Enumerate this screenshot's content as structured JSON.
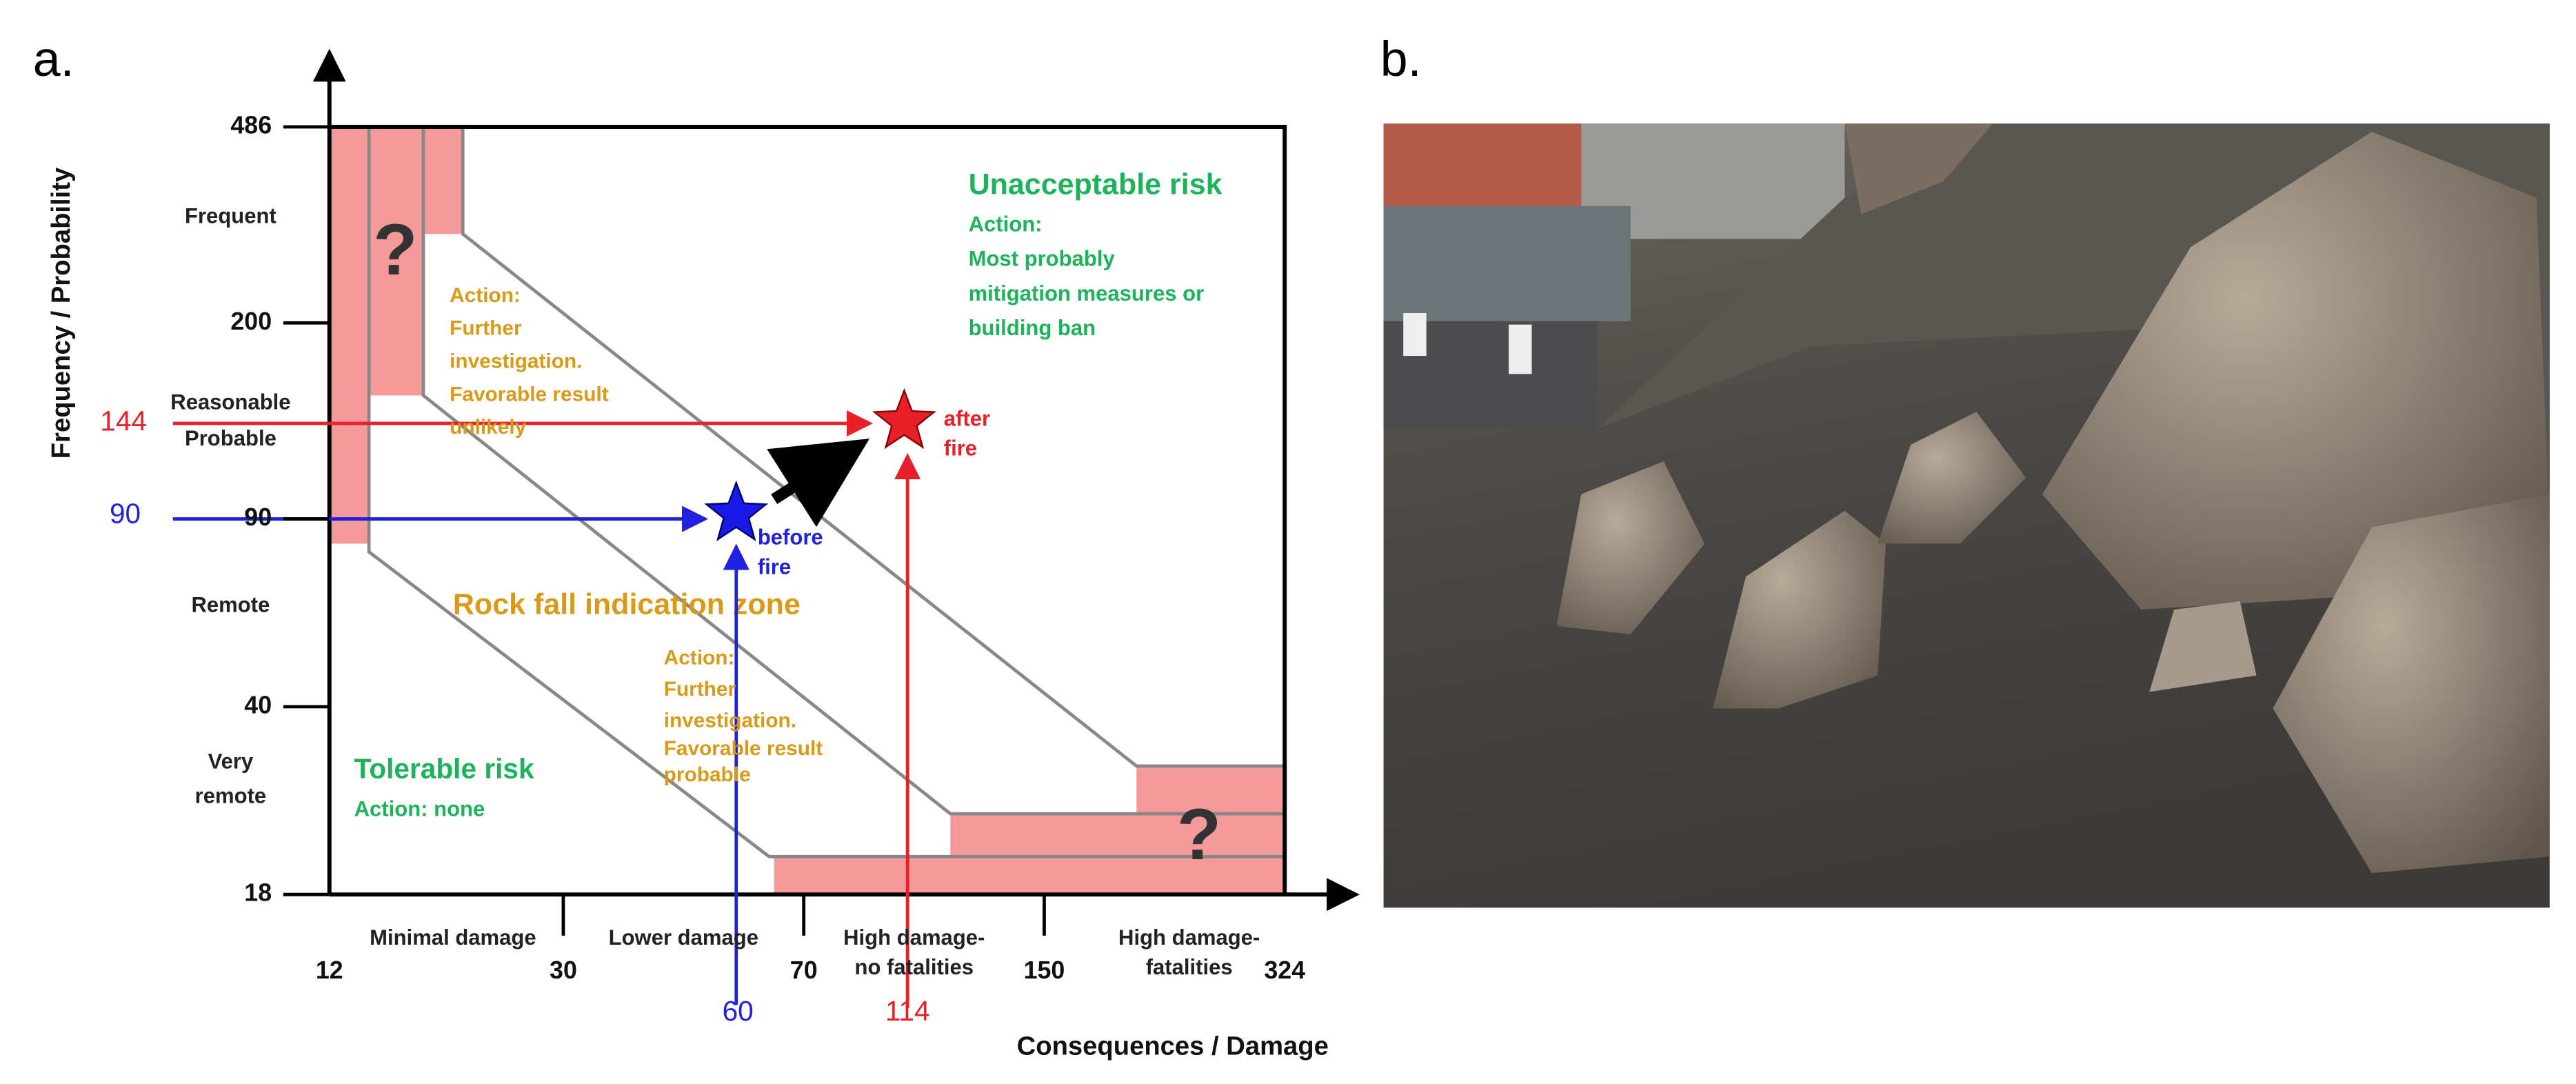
{
  "panel_a": {
    "label": "a.",
    "y_axis_title": "Frequency / Probability",
    "x_axis_title": "Consequences / Damage",
    "y_ticks": [
      486,
      200,
      90,
      40,
      18
    ],
    "y_categories": [
      [
        "Frequent"
      ],
      [
        "Reasonable",
        "Probable"
      ],
      [
        "Remote"
      ],
      [
        "Very",
        "remote"
      ]
    ],
    "x_ticks": [
      12,
      30,
      70,
      150,
      324
    ],
    "x_categories": [
      [
        "Minimal damage"
      ],
      [
        "Lower damage"
      ],
      [
        "High damage-",
        "no fatalities"
      ],
      [
        "High damage-",
        "fatalities"
      ]
    ],
    "unacceptable": {
      "title": "Unacceptable risk",
      "lines": [
        "Action:",
        "Most probably",
        "mitigation measures or",
        "building ban"
      ]
    },
    "upper_action": [
      "Action:",
      "Further",
      "investigation.",
      "Favorable result",
      "unlikely"
    ],
    "zone_title": "Rock fall indication zone",
    "lower_action": [
      "Action:",
      "Further",
      "investigation.",
      "Favorable result",
      "probable"
    ],
    "tolerable": {
      "title": "Tolerable risk",
      "action": "Action: none"
    },
    "unknown_marks": [
      "?",
      "?"
    ],
    "before_fire": {
      "x": 60,
      "y": 90,
      "label": [
        "before",
        "fire"
      ]
    },
    "after_fire": {
      "x": 114,
      "y": 144,
      "label": [
        "after",
        "fire"
      ]
    }
  },
  "panel_b": {
    "label": "b."
  }
}
